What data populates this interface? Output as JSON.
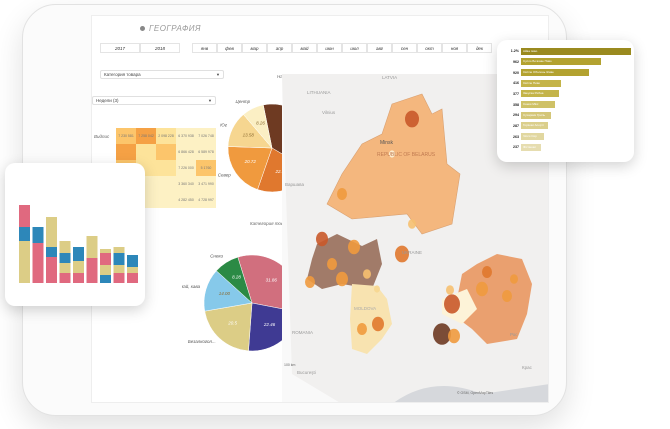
{
  "header": {
    "title": "ГЕОГРАФИЯ",
    "icon": "globe-icon"
  },
  "years": [
    "2017",
    "2018"
  ],
  "months": [
    "янв",
    "фев",
    "мар",
    "апр",
    "май",
    "июн",
    "июл",
    "авг",
    "сен",
    "окт",
    "ноя",
    "дек"
  ],
  "filters": {
    "category": "Категория товара",
    "weeks": "Недели (3)"
  },
  "pie_direction": {
    "title": "Направление",
    "slices": [
      {
        "label": "Запад",
        "value": "37.58",
        "color": "#6e3a22"
      },
      {
        "label": "Восток",
        "value": "22.46",
        "color": "#e0782e"
      },
      {
        "label": "Север",
        "value": "20.72",
        "color": "#f09a3e"
      },
      {
        "label": "Юг",
        "value": "13.58",
        "color": "#f6d690"
      },
      {
        "label": "Центр",
        "value": "8.26",
        "color": "#fbefc4"
      }
    ]
  },
  "pie_category": {
    "title": "Категория товара",
    "slices": [
      {
        "label": "Пиво та сл...",
        "value": "31.86",
        "color": "#d16f7e"
      },
      {
        "label": "Гастрономія",
        "value": "22.46",
        "color": "#3f3a93"
      },
      {
        "label": "Безалкогол...",
        "value": "20.5",
        "color": "#dccd86"
      },
      {
        "label": "Чай, кава",
        "value": "14.00",
        "color": "#86c9ea"
      },
      {
        "label": "Снеки",
        "value": "8.28",
        "color": "#2b8a45"
      }
    ]
  },
  "heatmap": {
    "row_label": "Видпис",
    "cells": [
      "7 230 581",
      "7 258 042",
      "2 098 228",
      "6 370 938",
      "7 026 748",
      "",
      "",
      "",
      "6 866 428",
      "6 589 978",
      "",
      "",
      "",
      "7 226 000",
      "5 1760",
      "",
      "",
      "",
      "3 360 340",
      "3 471 990",
      "",
      "",
      "",
      "4 282 450",
      "4 728 997"
    ]
  },
  "stacked_bars": {
    "colors": {
      "a": "#dccd86",
      "b": "#2d87b9",
      "c": "#e0697f"
    }
  },
  "ranking": {
    "values": [
      "1.2%",
      "962",
      "920",
      "416",
      "377",
      "358",
      "294",
      "287",
      "263",
      "237"
    ],
    "labels": [
      "Айва пиво",
      "Сусло Бочкове Пиво",
      "Світле Оболонь Живе",
      "Світле Пиво",
      "Закуска Рибна",
      "Снеки Мікс",
      "Сухарики Гриль",
      "Горішки Асорті",
      "Чіпси Сир",
      "Фісташки"
    ]
  },
  "map": {
    "labels": [
      "LATVIA",
      "LITHUANIA",
      "Vilnius",
      "Minsk",
      "REPUBLIC OF BELARUS",
      "UKRAINE",
      "MOLDOVA",
      "ROMANIA",
      "Варшава",
      "Bucureşti",
      "Рос",
      "Крас"
    ],
    "attribution": "© OSM, OpenMapTiles",
    "scale": "100 km"
  }
}
